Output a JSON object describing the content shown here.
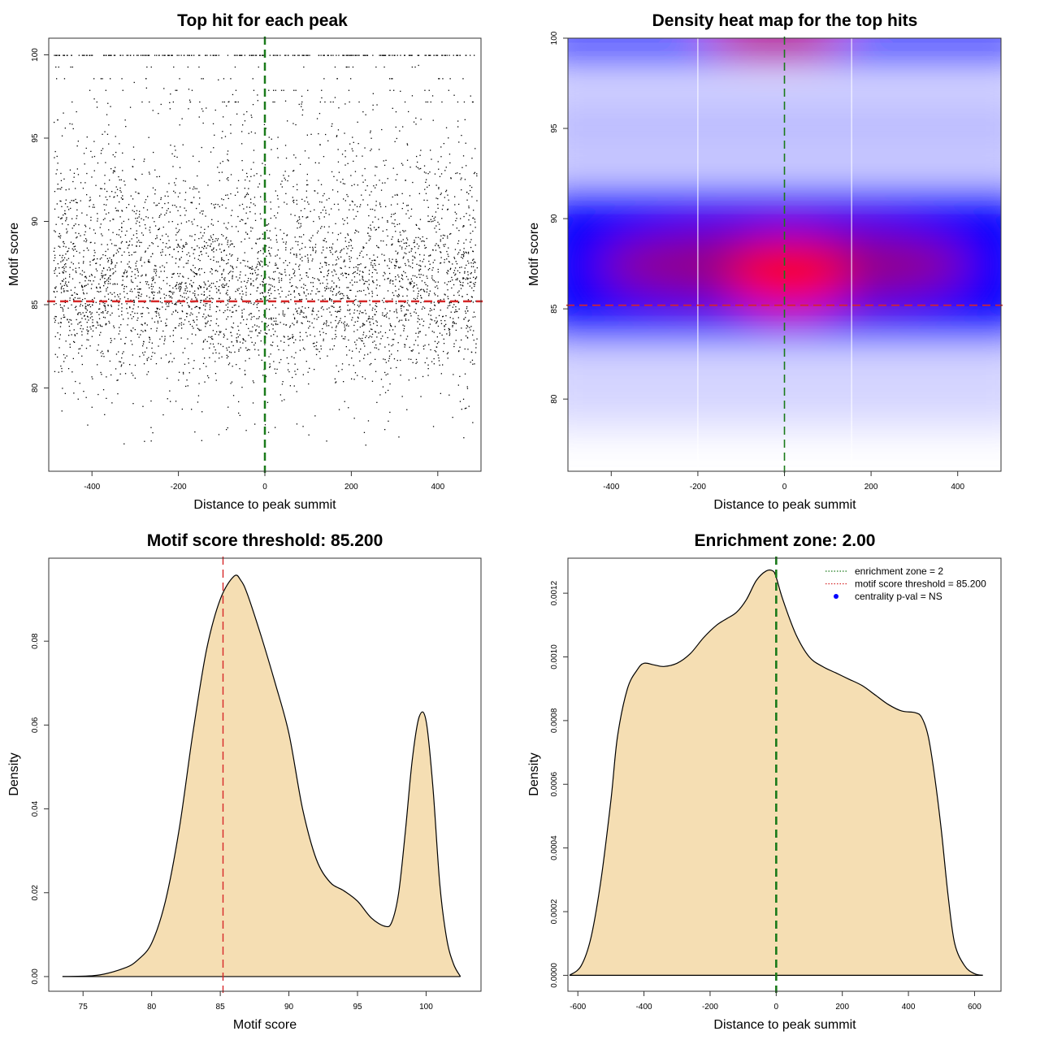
{
  "chart_data": [
    {
      "type": "scatter",
      "title": "Top hit for each peak",
      "xlabel": "Distance to peak summit",
      "ylabel": "Motif score",
      "xlim": [
        -500,
        500
      ],
      "ylim": [
        75,
        101
      ],
      "xticks": [
        -400,
        -200,
        0,
        200,
        400
      ],
      "yticks": [
        80,
        85,
        90,
        95,
        100
      ],
      "x_range_points": [
        -490,
        490
      ],
      "score_bands": [
        {
          "score": 100,
          "share": 0.08
        },
        {
          "score": 85,
          "share": 0.32
        },
        {
          "score": 87.5,
          "share": 0.25
        },
        {
          "score": 91,
          "share": 0.16
        },
        {
          "score": 83,
          "share": 0.1
        },
        {
          "score": 95,
          "share": 0.06
        },
        {
          "score": 79.5,
          "share": 0.03
        }
      ],
      "point_count": 4500,
      "threshold_line": {
        "axis": "y",
        "value": 85.2,
        "color": "#d62728",
        "style": "dashed"
      },
      "center_line": {
        "axis": "x",
        "value": 0,
        "color": "#1a7a1a",
        "style": "dashed"
      }
    },
    {
      "type": "heatmap",
      "title": "Density heat map for the top hits",
      "xlabel": "Distance to peak summit",
      "ylabel": "Motif score",
      "xlim": [
        -500,
        500
      ],
      "ylim": [
        76,
        100
      ],
      "xticks": [
        -400,
        -200,
        0,
        200,
        400
      ],
      "yticks": [
        80,
        85,
        90,
        95,
        100
      ],
      "color_scale": [
        "#ffffff",
        "#0000ff",
        "#ff0000"
      ],
      "hotspots": [
        {
          "x": 0,
          "y": 86.5,
          "level": "high"
        },
        {
          "x": -20,
          "y": 100,
          "level": "high"
        },
        {
          "x": 0,
          "y": 87.5,
          "level": "medium",
          "span_x": [
            -480,
            480
          ]
        }
      ],
      "white_vertical_lines": [
        -200,
        155
      ],
      "threshold_line": {
        "axis": "y",
        "value": 85.2,
        "color": "#d62728",
        "style": "dashed"
      },
      "center_line": {
        "axis": "x",
        "value": 0,
        "color": "#1a7a1a",
        "style": "dashed"
      }
    },
    {
      "type": "area",
      "title": "Motif score threshold: 85.200",
      "xlabel": "Motif score",
      "ylabel": "Density",
      "xlim": [
        72.5,
        104
      ],
      "ylim": [
        -0.0035,
        0.0998
      ],
      "xticks": [
        "75",
        "80",
        "85",
        "90",
        "95",
        "100"
      ],
      "yticks": [
        "0.00",
        "0.02",
        "0.04",
        "0.06",
        "0.08"
      ],
      "fill_color": "#f5deb3",
      "x": [
        73.5,
        76,
        78,
        79,
        80,
        81,
        82,
        83,
        84,
        85,
        86,
        86.5,
        87,
        88,
        89,
        90,
        91,
        92,
        93,
        94,
        95,
        96,
        97,
        97.5,
        98,
        98.5,
        99,
        99.5,
        100,
        100.5,
        101,
        101.5,
        102,
        102.5
      ],
      "values": [
        0,
        0.0003,
        0.002,
        0.004,
        0.008,
        0.018,
        0.035,
        0.058,
        0.078,
        0.09,
        0.0955,
        0.0945,
        0.091,
        0.081,
        0.07,
        0.058,
        0.04,
        0.028,
        0.0225,
        0.0205,
        0.018,
        0.014,
        0.012,
        0.013,
        0.02,
        0.035,
        0.052,
        0.062,
        0.061,
        0.045,
        0.022,
        0.009,
        0.003,
        0
      ],
      "threshold_line": {
        "axis": "x",
        "value": 85.2,
        "color": "#d62728",
        "style": "dashed"
      }
    },
    {
      "type": "area",
      "title": "Enrichment zone: 2.00",
      "xlabel": "Distance to peak summit",
      "ylabel": "Density",
      "xlim": [
        -630,
        680
      ],
      "ylim": [
        -5e-05,
        0.00131
      ],
      "xticks": [
        "-600",
        "-400",
        "-200",
        "0",
        "200",
        "400",
        "600"
      ],
      "yticks": [
        "0.0000",
        "0.0002",
        "0.0004",
        "0.0006",
        "0.0008",
        "0.0010",
        "0.0012"
      ],
      "fill_color": "#f5deb3",
      "x": [
        -625,
        -590,
        -560,
        -530,
        -500,
        -480,
        -450,
        -420,
        -400,
        -370,
        -340,
        -300,
        -260,
        -220,
        -180,
        -150,
        -120,
        -90,
        -60,
        -30,
        -10,
        0,
        20,
        60,
        100,
        140,
        180,
        220,
        260,
        300,
        340,
        380,
        420,
        440,
        460,
        480,
        500,
        520,
        540,
        570,
        600,
        625
      ],
      "values": [
        0,
        3e-05,
        0.00012,
        0.0003,
        0.00055,
        0.00075,
        0.0009,
        0.00096,
        0.00098,
        0.000975,
        0.00097,
        0.00098,
        0.00101,
        0.00106,
        0.0011,
        0.00112,
        0.00114,
        0.00118,
        0.00124,
        0.00127,
        0.00127,
        0.00125,
        0.00118,
        0.00107,
        0.001,
        0.00097,
        0.00095,
        0.00093,
        0.00091,
        0.00088,
        0.00085,
        0.00083,
        0.000825,
        0.00081,
        0.00075,
        0.00062,
        0.00045,
        0.00025,
        0.0001,
        3e-05,
        5e-06,
        0
      ],
      "center_line": {
        "axis": "x",
        "value": 0,
        "color": "#1a7a1a",
        "style": "dashed"
      },
      "legend": [
        {
          "label": "enrichment zone = 2",
          "color": "#1a7a1a",
          "marker": "dotted-line"
        },
        {
          "label": "motif score threshold = 85.200",
          "color": "#d62728",
          "marker": "dotted-line"
        },
        {
          "label": "centrality p-val = NS",
          "color": "#0000ff",
          "marker": "point"
        }
      ]
    }
  ]
}
